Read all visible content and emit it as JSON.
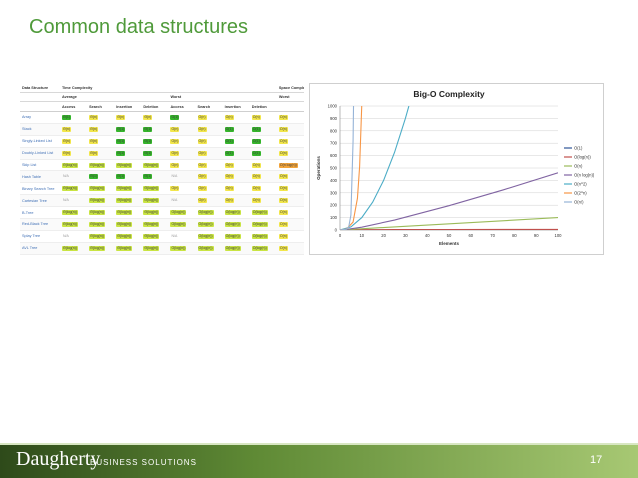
{
  "slide": {
    "title": "Common data structures",
    "page_number": "17"
  },
  "footer": {
    "logo_main": "Daugherty",
    "logo_sub": "BUSINESS SOLUTIONS"
  },
  "table": {
    "header_groups": [
      "Data Structure",
      "Time Complexity",
      "Space Complexity"
    ],
    "subgroups": [
      "Average",
      "Worst",
      "Worst"
    ],
    "columns": [
      "Access",
      "Search",
      "Insertion",
      "Deletion",
      "Access",
      "Search",
      "Insertion",
      "Deletion"
    ],
    "rows": [
      {
        "name": "Array",
        "cells": [
          [
            "Θ(1)",
            "green"
          ],
          [
            "Θ(n)",
            "yellow"
          ],
          [
            "Θ(n)",
            "yellow"
          ],
          [
            "Θ(n)",
            "yellow"
          ],
          [
            "O(1)",
            "green"
          ],
          [
            "O(n)",
            "yellow"
          ],
          [
            "O(n)",
            "yellow"
          ],
          [
            "O(n)",
            "yellow"
          ],
          [
            "O(n)",
            "yellow"
          ]
        ]
      },
      {
        "name": "Stack",
        "cells": [
          [
            "Θ(n)",
            "yellow"
          ],
          [
            "Θ(n)",
            "yellow"
          ],
          [
            "Θ(1)",
            "green"
          ],
          [
            "Θ(1)",
            "green"
          ],
          [
            "O(n)",
            "yellow"
          ],
          [
            "O(n)",
            "yellow"
          ],
          [
            "O(1)",
            "green"
          ],
          [
            "O(1)",
            "green"
          ],
          [
            "O(n)",
            "yellow"
          ]
        ]
      },
      {
        "name": "Singly-Linked List",
        "cells": [
          [
            "Θ(n)",
            "yellow"
          ],
          [
            "Θ(n)",
            "yellow"
          ],
          [
            "Θ(1)",
            "green"
          ],
          [
            "Θ(1)",
            "green"
          ],
          [
            "O(n)",
            "yellow"
          ],
          [
            "O(n)",
            "yellow"
          ],
          [
            "O(1)",
            "green"
          ],
          [
            "O(1)",
            "green"
          ],
          [
            "O(n)",
            "yellow"
          ]
        ]
      },
      {
        "name": "Doubly-Linked List",
        "cells": [
          [
            "Θ(n)",
            "yellow"
          ],
          [
            "Θ(n)",
            "yellow"
          ],
          [
            "Θ(1)",
            "green"
          ],
          [
            "Θ(1)",
            "green"
          ],
          [
            "O(n)",
            "yellow"
          ],
          [
            "O(n)",
            "yellow"
          ],
          [
            "O(1)",
            "green"
          ],
          [
            "O(1)",
            "green"
          ],
          [
            "O(n)",
            "yellow"
          ]
        ]
      },
      {
        "name": "Skip List",
        "cells": [
          [
            "Θ(log(n))",
            "lime"
          ],
          [
            "Θ(log(n))",
            "lime"
          ],
          [
            "Θ(log(n))",
            "lime"
          ],
          [
            "Θ(log(n))",
            "lime"
          ],
          [
            "O(n)",
            "yellow"
          ],
          [
            "O(n)",
            "yellow"
          ],
          [
            "O(n)",
            "yellow"
          ],
          [
            "O(n)",
            "yellow"
          ],
          [
            "O(n log(n))",
            "orange"
          ]
        ]
      },
      {
        "name": "Hash Table",
        "cells": [
          [
            "N/A",
            "none"
          ],
          [
            "Θ(1)",
            "green"
          ],
          [
            "Θ(1)",
            "green"
          ],
          [
            "Θ(1)",
            "green"
          ],
          [
            "N/A",
            "none"
          ],
          [
            "O(n)",
            "yellow"
          ],
          [
            "O(n)",
            "yellow"
          ],
          [
            "O(n)",
            "yellow"
          ],
          [
            "O(n)",
            "yellow"
          ]
        ]
      },
      {
        "name": "Binary Search Tree",
        "cells": [
          [
            "Θ(log(n))",
            "lime"
          ],
          [
            "Θ(log(n))",
            "lime"
          ],
          [
            "Θ(log(n))",
            "lime"
          ],
          [
            "Θ(log(n))",
            "lime"
          ],
          [
            "O(n)",
            "yellow"
          ],
          [
            "O(n)",
            "yellow"
          ],
          [
            "O(n)",
            "yellow"
          ],
          [
            "O(n)",
            "yellow"
          ],
          [
            "O(n)",
            "yellow"
          ]
        ]
      },
      {
        "name": "Cartesian Tree",
        "cells": [
          [
            "N/A",
            "none"
          ],
          [
            "Θ(log(n))",
            "lime"
          ],
          [
            "Θ(log(n))",
            "lime"
          ],
          [
            "Θ(log(n))",
            "lime"
          ],
          [
            "N/A",
            "none"
          ],
          [
            "O(n)",
            "yellow"
          ],
          [
            "O(n)",
            "yellow"
          ],
          [
            "O(n)",
            "yellow"
          ],
          [
            "O(n)",
            "yellow"
          ]
        ]
      },
      {
        "name": "B-Tree",
        "cells": [
          [
            "Θ(log(n))",
            "lime"
          ],
          [
            "Θ(log(n))",
            "lime"
          ],
          [
            "Θ(log(n))",
            "lime"
          ],
          [
            "Θ(log(n))",
            "lime"
          ],
          [
            "O(log(n))",
            "lime"
          ],
          [
            "O(log(n))",
            "lime"
          ],
          [
            "O(log(n))",
            "lime"
          ],
          [
            "O(log(n))",
            "lime"
          ],
          [
            "O(n)",
            "yellow"
          ]
        ]
      },
      {
        "name": "Red-Black Tree",
        "cells": [
          [
            "Θ(log(n))",
            "lime"
          ],
          [
            "Θ(log(n))",
            "lime"
          ],
          [
            "Θ(log(n))",
            "lime"
          ],
          [
            "Θ(log(n))",
            "lime"
          ],
          [
            "O(log(n))",
            "lime"
          ],
          [
            "O(log(n))",
            "lime"
          ],
          [
            "O(log(n))",
            "lime"
          ],
          [
            "O(log(n))",
            "lime"
          ],
          [
            "O(n)",
            "yellow"
          ]
        ]
      },
      {
        "name": "Splay Tree",
        "cells": [
          [
            "N/A",
            "none"
          ],
          [
            "Θ(log(n))",
            "lime"
          ],
          [
            "Θ(log(n))",
            "lime"
          ],
          [
            "Θ(log(n))",
            "lime"
          ],
          [
            "N/A",
            "none"
          ],
          [
            "O(log(n))",
            "lime"
          ],
          [
            "O(log(n))",
            "lime"
          ],
          [
            "O(log(n))",
            "lime"
          ],
          [
            "O(n)",
            "yellow"
          ]
        ]
      },
      {
        "name": "AVL Tree",
        "cells": [
          [
            "Θ(log(n))",
            "lime"
          ],
          [
            "Θ(log(n))",
            "lime"
          ],
          [
            "Θ(log(n))",
            "lime"
          ],
          [
            "Θ(log(n))",
            "lime"
          ],
          [
            "O(log(n))",
            "lime"
          ],
          [
            "O(log(n))",
            "lime"
          ],
          [
            "O(log(n))",
            "lime"
          ],
          [
            "O(log(n))",
            "lime"
          ],
          [
            "O(n)",
            "yellow"
          ]
        ]
      }
    ],
    "cell_colors": {
      "green": "#35b52b",
      "lime": "#c9e443",
      "yellow": "#f2e64b",
      "orange": "#f2a43a"
    }
  },
  "chart_data": {
    "type": "line",
    "title": "Big-O Complexity",
    "xlabel": "Elements",
    "ylabel": "Operations",
    "xlim": [
      0,
      100
    ],
    "ylim": [
      0,
      1000
    ],
    "x_ticks": [
      0,
      10,
      20,
      30,
      40,
      50,
      60,
      70,
      80,
      90,
      100
    ],
    "y_ticks": [
      0,
      100,
      200,
      300,
      400,
      500,
      600,
      700,
      800,
      900,
      1000
    ],
    "grid": true,
    "legend": "right",
    "series": [
      {
        "name": "O(1)",
        "color": "#2f5597",
        "x": [
          1,
          100
        ],
        "y": [
          1,
          1
        ]
      },
      {
        "name": "O(log(n))",
        "color": "#c0504d",
        "x": [
          1,
          10,
          25,
          50,
          75,
          100
        ],
        "y": [
          0,
          2.3,
          3.2,
          3.9,
          4.3,
          4.6
        ]
      },
      {
        "name": "O(n)",
        "color": "#9bbb59",
        "x": [
          0,
          100
        ],
        "y": [
          0,
          100
        ]
      },
      {
        "name": "O(n log(n))",
        "color": "#8064a2",
        "x": [
          1,
          10,
          25,
          50,
          75,
          100
        ],
        "y": [
          0,
          23,
          80,
          196,
          324,
          461
        ]
      },
      {
        "name": "O(n^2)",
        "color": "#4bacc6",
        "x": [
          0,
          5,
          10,
          15,
          20,
          25,
          30,
          31.6
        ],
        "y": [
          0,
          25,
          100,
          225,
          400,
          625,
          900,
          1000
        ]
      },
      {
        "name": "O(2^n)",
        "color": "#f79646",
        "x": [
          0,
          3,
          6,
          8,
          9,
          9.97
        ],
        "y": [
          1,
          8,
          64,
          256,
          512,
          1000
        ]
      },
      {
        "name": "O(n!)",
        "color": "#95b3d7",
        "x": [
          0,
          3,
          4,
          5,
          6,
          6.2
        ],
        "y": [
          1,
          6,
          24,
          120,
          720,
          1000
        ]
      }
    ]
  }
}
